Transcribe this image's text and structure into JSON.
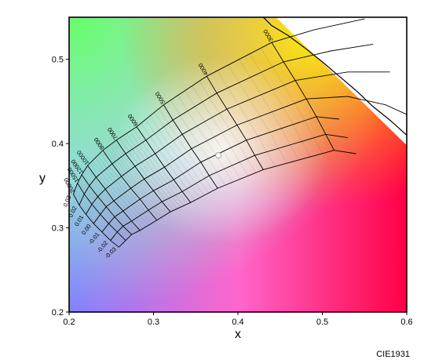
{
  "chart_data": {
    "type": "chromaticity-diagram",
    "xlabel": "x",
    "ylabel": "y",
    "xlim": [
      0.2,
      0.6
    ],
    "ylim": [
      0.2,
      0.55
    ],
    "x_ticks": [
      "0.2",
      "0.3",
      "0.4",
      "0.5",
      "0.6"
    ],
    "y_ticks": [
      "0.2",
      "0.3",
      "0.4",
      "0.5"
    ],
    "grid": false,
    "cct_labels": [
      "20000",
      "15000",
      "12000",
      "10000",
      "8000",
      "7000",
      "6000",
      "5000",
      "4000",
      "3000"
    ],
    "duv_labels": [
      "0.03",
      "0.02",
      "0.01",
      "0.00",
      "-0.01",
      "-0.02",
      "-0.03"
    ],
    "cct_lines": [
      {
        "cct": "20000",
        "points": [
          [
            0.205,
            0.34
          ],
          [
            0.212,
            0.327
          ],
          [
            0.22,
            0.316
          ],
          [
            0.229,
            0.305
          ],
          [
            0.239,
            0.295
          ],
          [
            0.249,
            0.285
          ],
          [
            0.259,
            0.277
          ]
        ]
      },
      {
        "cct": "15000",
        "points": [
          [
            0.21,
            0.353
          ],
          [
            0.218,
            0.34
          ],
          [
            0.227,
            0.328
          ],
          [
            0.237,
            0.316
          ],
          [
            0.247,
            0.305
          ],
          [
            0.257,
            0.295
          ],
          [
            0.267,
            0.285
          ]
        ]
      },
      {
        "cct": "12000",
        "points": [
          [
            0.215,
            0.363
          ],
          [
            0.224,
            0.35
          ],
          [
            0.234,
            0.337
          ],
          [
            0.244,
            0.325
          ],
          [
            0.254,
            0.313
          ],
          [
            0.264,
            0.302
          ],
          [
            0.274,
            0.292
          ]
        ]
      },
      {
        "cct": "10000",
        "points": [
          [
            0.222,
            0.374
          ],
          [
            0.232,
            0.36
          ],
          [
            0.243,
            0.346
          ],
          [
            0.253,
            0.332
          ],
          [
            0.264,
            0.32
          ],
          [
            0.274,
            0.308
          ],
          [
            0.284,
            0.297
          ]
        ]
      },
      {
        "cct": "8000",
        "points": [
          [
            0.24,
            0.392
          ],
          [
            0.251,
            0.376
          ],
          [
            0.262,
            0.361
          ],
          [
            0.273,
            0.347
          ],
          [
            0.284,
            0.334
          ],
          [
            0.294,
            0.321
          ],
          [
            0.304,
            0.309
          ]
        ]
      },
      {
        "cct": "7000",
        "points": [
          [
            0.256,
            0.404
          ],
          [
            0.267,
            0.388
          ],
          [
            0.278,
            0.373
          ],
          [
            0.289,
            0.358
          ],
          [
            0.3,
            0.344
          ],
          [
            0.31,
            0.331
          ],
          [
            0.32,
            0.319
          ]
        ]
      },
      {
        "cct": "6000",
        "points": [
          [
            0.28,
            0.42
          ],
          [
            0.291,
            0.404
          ],
          [
            0.302,
            0.388
          ],
          [
            0.313,
            0.372
          ],
          [
            0.324,
            0.357
          ],
          [
            0.334,
            0.343
          ],
          [
            0.344,
            0.33
          ]
        ]
      },
      {
        "cct": "5000",
        "points": [
          [
            0.312,
            0.446
          ],
          [
            0.323,
            0.428
          ],
          [
            0.334,
            0.411
          ],
          [
            0.345,
            0.394
          ],
          [
            0.356,
            0.378
          ],
          [
            0.366,
            0.362
          ],
          [
            0.376,
            0.347
          ]
        ]
      },
      {
        "cct": "4000",
        "points": [
          [
            0.363,
            0.48
          ],
          [
            0.375,
            0.46
          ],
          [
            0.387,
            0.441
          ],
          [
            0.399,
            0.422
          ],
          [
            0.41,
            0.404
          ],
          [
            0.42,
            0.386
          ],
          [
            0.43,
            0.369
          ]
        ]
      },
      {
        "cct": "3000",
        "points": [
          [
            0.44,
            0.52
          ],
          [
            0.454,
            0.497
          ],
          [
            0.468,
            0.475
          ],
          [
            0.481,
            0.453
          ],
          [
            0.493,
            0.432
          ],
          [
            0.504,
            0.411
          ],
          [
            0.514,
            0.392
          ]
        ]
      }
    ],
    "duv_lines": [
      {
        "duv": "0.03",
        "points": [
          [
            0.205,
            0.34
          ],
          [
            0.21,
            0.353
          ],
          [
            0.215,
            0.363
          ],
          [
            0.222,
            0.374
          ],
          [
            0.24,
            0.392
          ],
          [
            0.256,
            0.404
          ],
          [
            0.28,
            0.42
          ],
          [
            0.312,
            0.446
          ],
          [
            0.363,
            0.48
          ],
          [
            0.44,
            0.52
          ],
          [
            0.49,
            0.535
          ],
          [
            0.55,
            0.548
          ]
        ]
      },
      {
        "duv": "0.02",
        "points": [
          [
            0.212,
            0.327
          ],
          [
            0.218,
            0.34
          ],
          [
            0.224,
            0.35
          ],
          [
            0.232,
            0.36
          ],
          [
            0.251,
            0.376
          ],
          [
            0.267,
            0.388
          ],
          [
            0.291,
            0.404
          ],
          [
            0.323,
            0.428
          ],
          [
            0.375,
            0.46
          ],
          [
            0.454,
            0.497
          ],
          [
            0.51,
            0.51
          ],
          [
            0.56,
            0.518
          ]
        ]
      },
      {
        "duv": "0.01",
        "points": [
          [
            0.22,
            0.316
          ],
          [
            0.227,
            0.328
          ],
          [
            0.234,
            0.337
          ],
          [
            0.243,
            0.346
          ],
          [
            0.262,
            0.361
          ],
          [
            0.278,
            0.373
          ],
          [
            0.302,
            0.388
          ],
          [
            0.334,
            0.411
          ],
          [
            0.387,
            0.441
          ],
          [
            0.468,
            0.475
          ],
          [
            0.53,
            0.485
          ],
          [
            0.58,
            0.485
          ]
        ]
      },
      {
        "duv": "0.00",
        "points": [
          [
            0.229,
            0.305
          ],
          [
            0.237,
            0.316
          ],
          [
            0.244,
            0.325
          ],
          [
            0.253,
            0.332
          ],
          [
            0.273,
            0.347
          ],
          [
            0.289,
            0.358
          ],
          [
            0.313,
            0.372
          ],
          [
            0.345,
            0.394
          ],
          [
            0.399,
            0.422
          ],
          [
            0.481,
            0.453
          ],
          [
            0.53,
            0.456
          ],
          [
            0.575,
            0.446
          ],
          [
            0.61,
            0.43
          ]
        ]
      },
      {
        "duv": "-0.01",
        "points": [
          [
            0.239,
            0.295
          ],
          [
            0.247,
            0.305
          ],
          [
            0.254,
            0.313
          ],
          [
            0.264,
            0.32
          ],
          [
            0.284,
            0.334
          ],
          [
            0.3,
            0.344
          ],
          [
            0.324,
            0.357
          ],
          [
            0.356,
            0.378
          ],
          [
            0.41,
            0.404
          ],
          [
            0.493,
            0.432
          ],
          [
            0.52,
            0.429
          ]
        ]
      },
      {
        "duv": "-0.02",
        "points": [
          [
            0.249,
            0.285
          ],
          [
            0.257,
            0.295
          ],
          [
            0.264,
            0.302
          ],
          [
            0.274,
            0.308
          ],
          [
            0.294,
            0.321
          ],
          [
            0.31,
            0.331
          ],
          [
            0.334,
            0.343
          ],
          [
            0.366,
            0.362
          ],
          [
            0.42,
            0.386
          ],
          [
            0.504,
            0.411
          ],
          [
            0.53,
            0.407
          ]
        ]
      },
      {
        "duv": "-0.03",
        "points": [
          [
            0.259,
            0.277
          ],
          [
            0.267,
            0.285
          ],
          [
            0.274,
            0.292
          ],
          [
            0.284,
            0.297
          ],
          [
            0.304,
            0.309
          ],
          [
            0.32,
            0.319
          ],
          [
            0.344,
            0.33
          ],
          [
            0.376,
            0.347
          ],
          [
            0.43,
            0.369
          ],
          [
            0.514,
            0.392
          ],
          [
            0.54,
            0.388
          ]
        ]
      }
    ],
    "planckian_locus": [
      [
        0.43,
        0.55
      ],
      [
        0.44,
        0.54
      ],
      [
        0.46,
        0.528
      ],
      [
        0.48,
        0.513
      ],
      [
        0.5,
        0.497
      ],
      [
        0.52,
        0.48
      ],
      [
        0.54,
        0.463
      ],
      [
        0.56,
        0.444
      ],
      [
        0.58,
        0.428
      ],
      [
        0.6,
        0.41
      ]
    ],
    "white_point": [
      0.377,
      0.386
    ],
    "note": "CIE1931"
  }
}
